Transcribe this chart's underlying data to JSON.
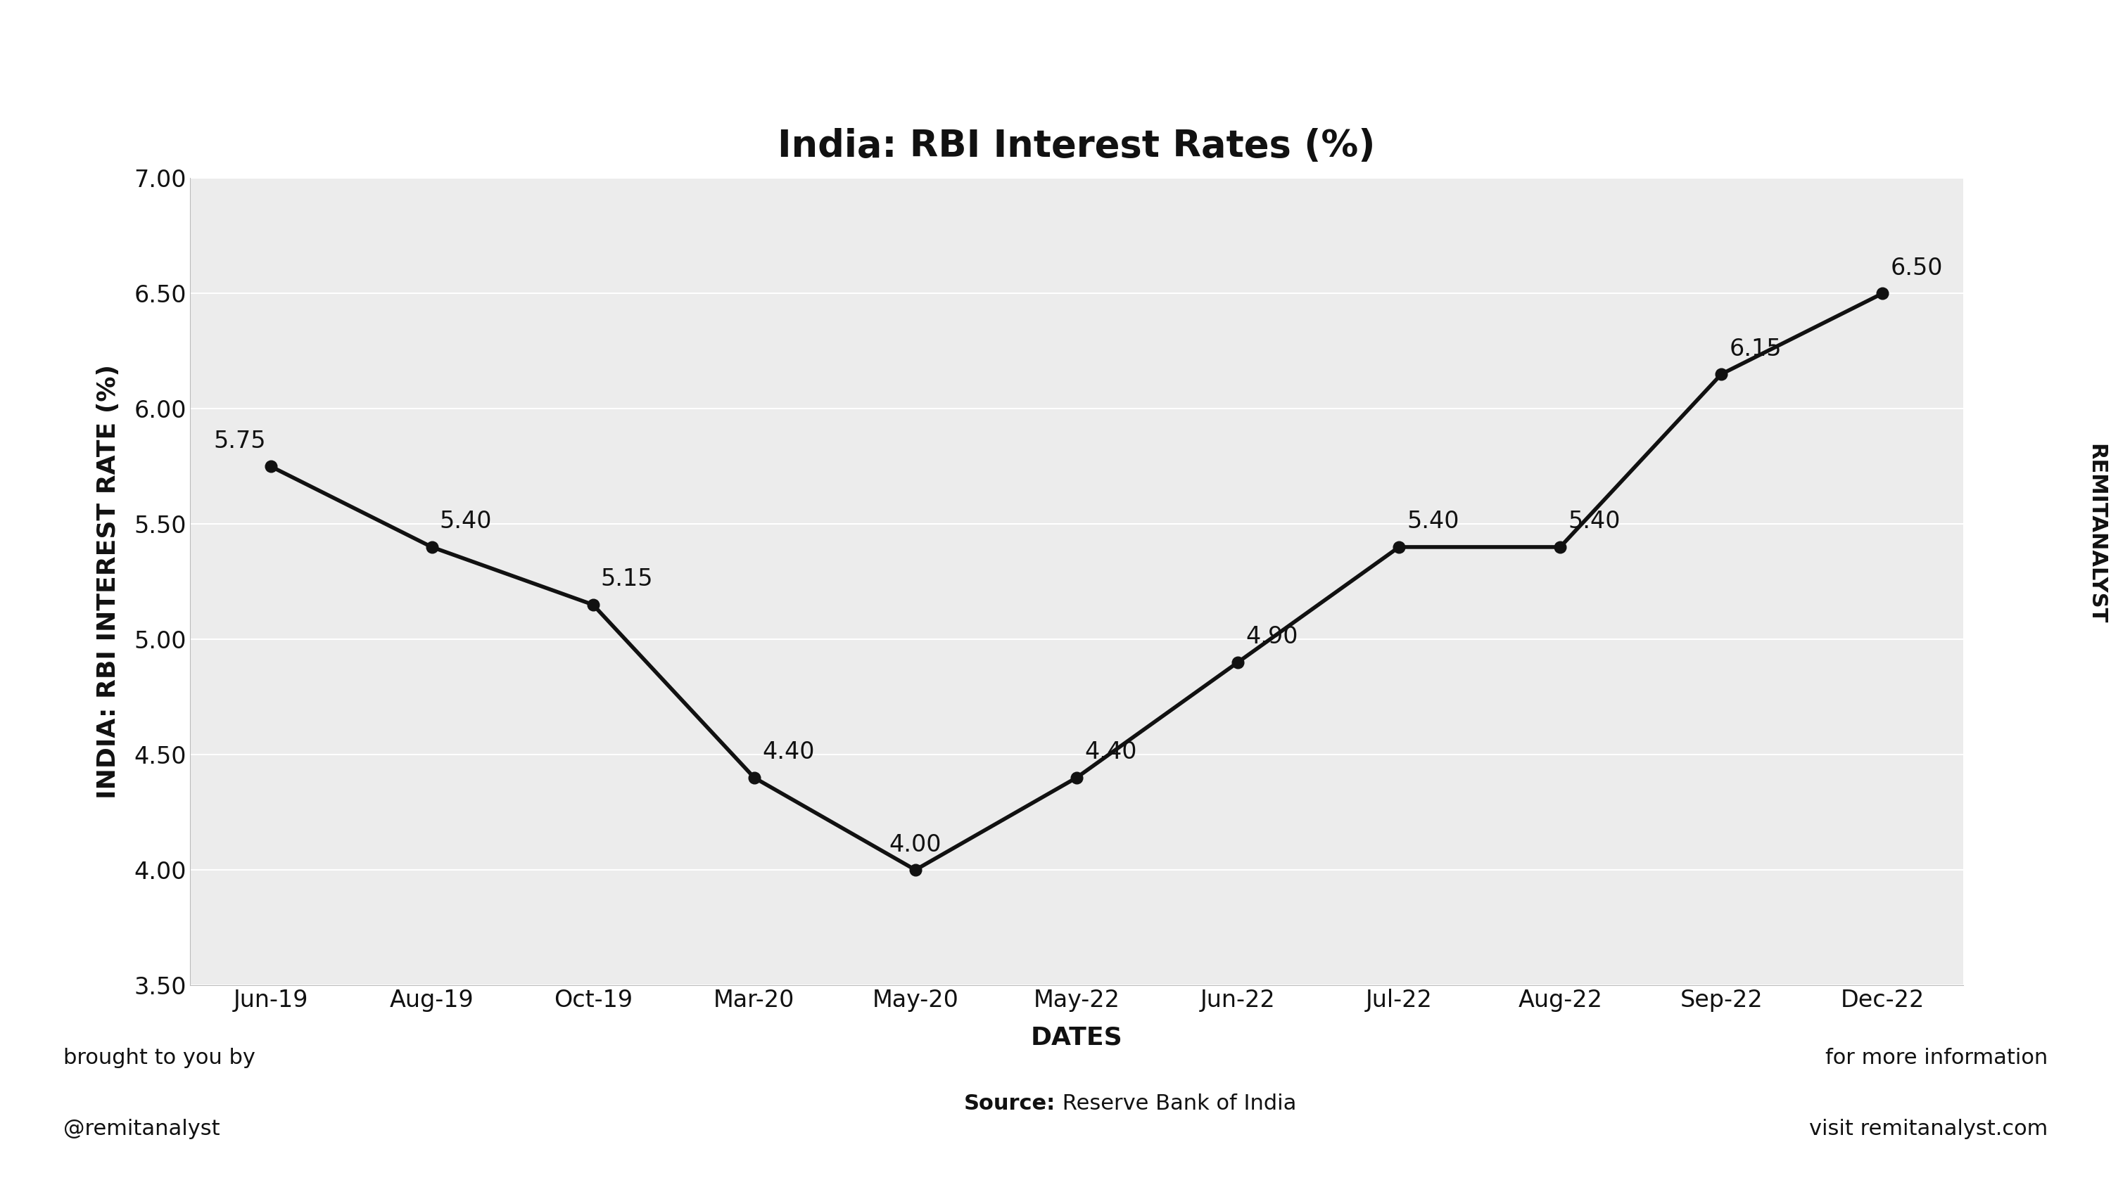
{
  "title": "India: RBI Interest Rates (%)",
  "xlabel": "DATES",
  "ylabel": "INDIA: RBI INTEREST RATE (%)",
  "x_labels": [
    "Jun-19",
    "Aug-19",
    "Oct-19",
    "Mar-20",
    "May-20",
    "May-22",
    "Jun-22",
    "Jul-22",
    "Aug-22",
    "Sep-22",
    "Dec-22"
  ],
  "y_values": [
    5.75,
    5.4,
    5.15,
    4.4,
    4.0,
    4.4,
    4.9,
    5.4,
    5.4,
    6.15,
    6.5
  ],
  "yticks": [
    3.5,
    4.0,
    4.5,
    5.0,
    5.5,
    6.0,
    6.5,
    7.0
  ],
  "ylim": [
    3.5,
    7.0
  ],
  "line_color": "#111111",
  "marker_color": "#111111",
  "bg_color": "#ececec",
  "fig_bg_color": "#ffffff",
  "title_fontsize": 38,
  "axis_label_fontsize": 26,
  "tick_label_fontsize": 24,
  "annotation_fontsize": 24,
  "footer_fontsize": 22,
  "watermark_fontsize": 22,
  "line_width": 4.0,
  "marker_size": 12,
  "source_bold": "Source:",
  "source_rest": " Reserve Bank of India",
  "left_footer_line1": "brought to you by",
  "left_footer_line2": "@remitanalyst",
  "right_footer_line1": "for more information",
  "right_footer_line2": "visit remitanalyst.com",
  "watermark": "REMITANALYST"
}
